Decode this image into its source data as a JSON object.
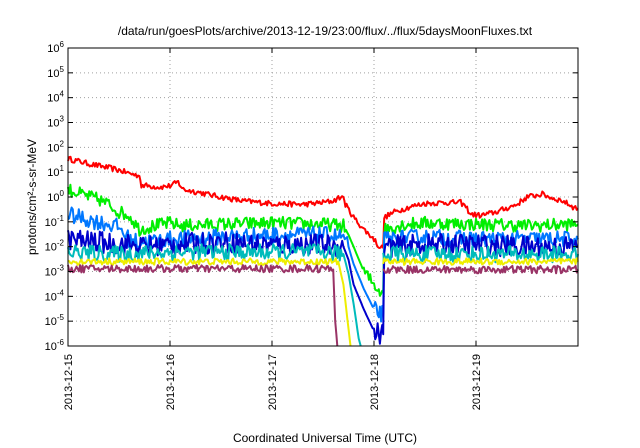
{
  "chart_data": {
    "type": "line",
    "title": "/data/run/goesPlots/archive/2013-12-19/23:00/flux/../flux/5daysMoonFluxes.txt",
    "xlabel": "Coordinated Universal Time (UTC)",
    "ylabel": "protons/cm²-s-sr-MeV",
    "x_unit": "days",
    "xlim": [
      0,
      5
    ],
    "ylim_log10": [
      -6,
      6
    ],
    "y_scale": "log",
    "grid": true,
    "legend": "none",
    "x_ticks": [
      {
        "value": 0,
        "label": "2013-12-15"
      },
      {
        "value": 1,
        "label": "2013-12-16"
      },
      {
        "value": 2,
        "label": "2013-12-17"
      },
      {
        "value": 3,
        "label": "2013-12-18"
      },
      {
        "value": 4,
        "label": "2013-12-19"
      }
    ],
    "y_ticks": [
      {
        "exp": 6,
        "base": "10",
        "sup": "6"
      },
      {
        "exp": 5,
        "base": "10",
        "sup": "5"
      },
      {
        "exp": 4,
        "base": "10",
        "sup": "4"
      },
      {
        "exp": 3,
        "base": "10",
        "sup": "3"
      },
      {
        "exp": 2,
        "base": "10",
        "sup": "2"
      },
      {
        "exp": 1,
        "base": "10",
        "sup": "1"
      },
      {
        "exp": 0,
        "base": "10",
        "sup": "0"
      },
      {
        "exp": -1,
        "base": "10",
        "sup": "-1"
      },
      {
        "exp": -2,
        "base": "10",
        "sup": "-2"
      },
      {
        "exp": -3,
        "base": "10",
        "sup": "-3"
      },
      {
        "exp": -4,
        "base": "10",
        "sup": "-4"
      },
      {
        "exp": -5,
        "base": "10",
        "sup": "-5"
      },
      {
        "exp": -6,
        "base": "10",
        "sup": "-6"
      }
    ],
    "series": [
      {
        "color": "#ff0000",
        "noise": 0.05,
        "points": [
          [
            0,
            35
          ],
          [
            0.1,
            28
          ],
          [
            0.2,
            22
          ],
          [
            0.3,
            18
          ],
          [
            0.4,
            15
          ],
          [
            0.5,
            12
          ],
          [
            0.6,
            9
          ],
          [
            0.7,
            7
          ],
          [
            0.72,
            3
          ],
          [
            0.9,
            2.5
          ],
          [
            1.0,
            2.8
          ],
          [
            1.08,
            4
          ],
          [
            1.13,
            2
          ],
          [
            1.3,
            1.5
          ],
          [
            1.4,
            1.2
          ],
          [
            1.5,
            1
          ],
          [
            1.7,
            0.7
          ],
          [
            2.0,
            0.55
          ],
          [
            2.3,
            0.5
          ],
          [
            2.5,
            0.6
          ],
          [
            2.6,
            0.7
          ],
          [
            2.65,
            0.9
          ],
          [
            2.7,
            1.0
          ],
          [
            2.72,
            0.5
          ],
          [
            2.8,
            0.15
          ],
          [
            2.9,
            0.05
          ],
          [
            3.0,
            0.02
          ],
          [
            3.05,
            0.01
          ],
          [
            3.09,
            0.009
          ],
          [
            3.1,
            0.15
          ],
          [
            3.2,
            0.25
          ],
          [
            3.35,
            0.4
          ],
          [
            3.5,
            0.55
          ],
          [
            3.7,
            0.6
          ],
          [
            3.85,
            0.6
          ],
          [
            3.9,
            0.4
          ],
          [
            3.95,
            0.2
          ],
          [
            4.05,
            0.18
          ],
          [
            4.2,
            0.25
          ],
          [
            4.4,
            0.5
          ],
          [
            4.5,
            1.0
          ],
          [
            4.65,
            1.3
          ],
          [
            4.75,
            0.9
          ],
          [
            4.85,
            0.7
          ],
          [
            4.95,
            0.4
          ],
          [
            5.0,
            0.35
          ]
        ]
      },
      {
        "color": "#00ee00",
        "noise": 0.12,
        "points": [
          [
            0,
            2
          ],
          [
            0.15,
            1.2
          ],
          [
            0.3,
            0.8
          ],
          [
            0.4,
            0.5
          ],
          [
            0.5,
            0.25
          ],
          [
            0.6,
            0.18
          ],
          [
            0.7,
            0.05
          ],
          [
            0.85,
            0.07
          ],
          [
            1.0,
            0.09
          ],
          [
            1.1,
            0.07
          ],
          [
            1.5,
            0.08
          ],
          [
            2.0,
            0.09
          ],
          [
            2.5,
            0.08
          ],
          [
            2.7,
            0.07
          ],
          [
            2.75,
            0.03
          ],
          [
            2.8,
            0.01
          ],
          [
            2.9,
            0.001
          ],
          [
            3.0,
            0.0003
          ],
          [
            3.07,
            0.00015
          ],
          [
            3.09,
            0.00015
          ],
          [
            3.1,
            0.05
          ],
          [
            3.3,
            0.08
          ],
          [
            3.5,
            0.09
          ],
          [
            4.0,
            0.08
          ],
          [
            4.5,
            0.07
          ],
          [
            5.0,
            0.08
          ]
        ]
      },
      {
        "color": "#0077ff",
        "noise": 0.15,
        "points": [
          [
            0,
            0.2
          ],
          [
            0.2,
            0.12
          ],
          [
            0.4,
            0.08
          ],
          [
            0.5,
            0.06
          ],
          [
            0.6,
            0.02
          ],
          [
            0.7,
            0.015
          ],
          [
            1.0,
            0.02
          ],
          [
            1.5,
            0.025
          ],
          [
            2.0,
            0.03
          ],
          [
            2.5,
            0.03
          ],
          [
            2.7,
            0.025
          ],
          [
            2.75,
            0.01
          ],
          [
            2.8,
            0.002
          ],
          [
            2.9,
            0.0002
          ],
          [
            3.0,
            3e-05
          ],
          [
            3.07,
            2e-05
          ],
          [
            3.09,
            2e-05
          ],
          [
            3.1,
            0.02
          ],
          [
            3.5,
            0.025
          ],
          [
            4.0,
            0.02
          ],
          [
            4.5,
            0.02
          ],
          [
            5.0,
            0.02
          ]
        ]
      },
      {
        "color": "#0000cc",
        "noise": 0.2,
        "points": [
          [
            0,
            0.02
          ],
          [
            0.3,
            0.015
          ],
          [
            0.6,
            0.012
          ],
          [
            0.7,
            0.01
          ],
          [
            1.0,
            0.012
          ],
          [
            1.5,
            0.015
          ],
          [
            2.0,
            0.012
          ],
          [
            2.5,
            0.012
          ],
          [
            2.7,
            0.01
          ],
          [
            2.75,
            0.003
          ],
          [
            2.8,
            0.0003
          ],
          [
            2.9,
            3e-05
          ],
          [
            3.0,
            4e-06
          ],
          [
            3.07,
            3e-06
          ],
          [
            3.09,
            3e-06
          ],
          [
            3.1,
            0.01
          ],
          [
            3.5,
            0.012
          ],
          [
            4.0,
            0.012
          ],
          [
            4.5,
            0.01
          ],
          [
            5.0,
            0.01
          ]
        ]
      },
      {
        "color": "#00bbbb",
        "noise": 0.15,
        "points": [
          [
            0,
            0.006
          ],
          [
            0.5,
            0.005
          ],
          [
            1.0,
            0.006
          ],
          [
            1.5,
            0.006
          ],
          [
            2.0,
            0.006
          ],
          [
            2.5,
            0.006
          ],
          [
            2.7,
            0.005
          ],
          [
            2.75,
            0.0008
          ],
          [
            2.8,
            5e-05
          ],
          [
            2.85,
            2e-06
          ],
          [
            2.87,
            1e-06
          ]
        ]
      },
      {
        "color": "#eeee00",
        "noise": 0.06,
        "points": [
          [
            0,
            0.0025
          ],
          [
            0.5,
            0.0025
          ],
          [
            1.0,
            0.0025
          ],
          [
            1.5,
            0.0025
          ],
          [
            2.0,
            0.0025
          ],
          [
            2.5,
            0.0025
          ],
          [
            2.65,
            0.0025
          ],
          [
            2.7,
            0.0003
          ],
          [
            2.75,
            5e-06
          ],
          [
            2.77,
            1e-06
          ]
        ]
      },
      {
        "color": "#993366",
        "noise": 0.07,
        "points": [
          [
            0,
            0.0013
          ],
          [
            0.5,
            0.0013
          ],
          [
            1.0,
            0.0013
          ],
          [
            1.5,
            0.0013
          ],
          [
            2.0,
            0.0013
          ],
          [
            2.5,
            0.0013
          ],
          [
            2.6,
            0.0012
          ],
          [
            2.62,
            1e-05
          ],
          [
            2.64,
            1e-06
          ]
        ]
      },
      {
        "color": "#00bbbb",
        "noise": 0.15,
        "points": [
          [
            3.09,
            0.005
          ],
          [
            3.5,
            0.005
          ],
          [
            4.0,
            0.005
          ],
          [
            4.5,
            0.005
          ],
          [
            5.0,
            0.005
          ]
        ]
      },
      {
        "color": "#eeee00",
        "noise": 0.06,
        "points": [
          [
            3.09,
            0.0025
          ],
          [
            3.5,
            0.0025
          ],
          [
            4.0,
            0.0025
          ],
          [
            4.5,
            0.0025
          ],
          [
            5.0,
            0.0025
          ]
        ]
      },
      {
        "color": "#993366",
        "noise": 0.07,
        "points": [
          [
            3.09,
            0.0012
          ],
          [
            3.5,
            0.0012
          ],
          [
            4.0,
            0.0012
          ],
          [
            4.5,
            0.0012
          ],
          [
            5.0,
            0.0012
          ]
        ]
      }
    ]
  }
}
